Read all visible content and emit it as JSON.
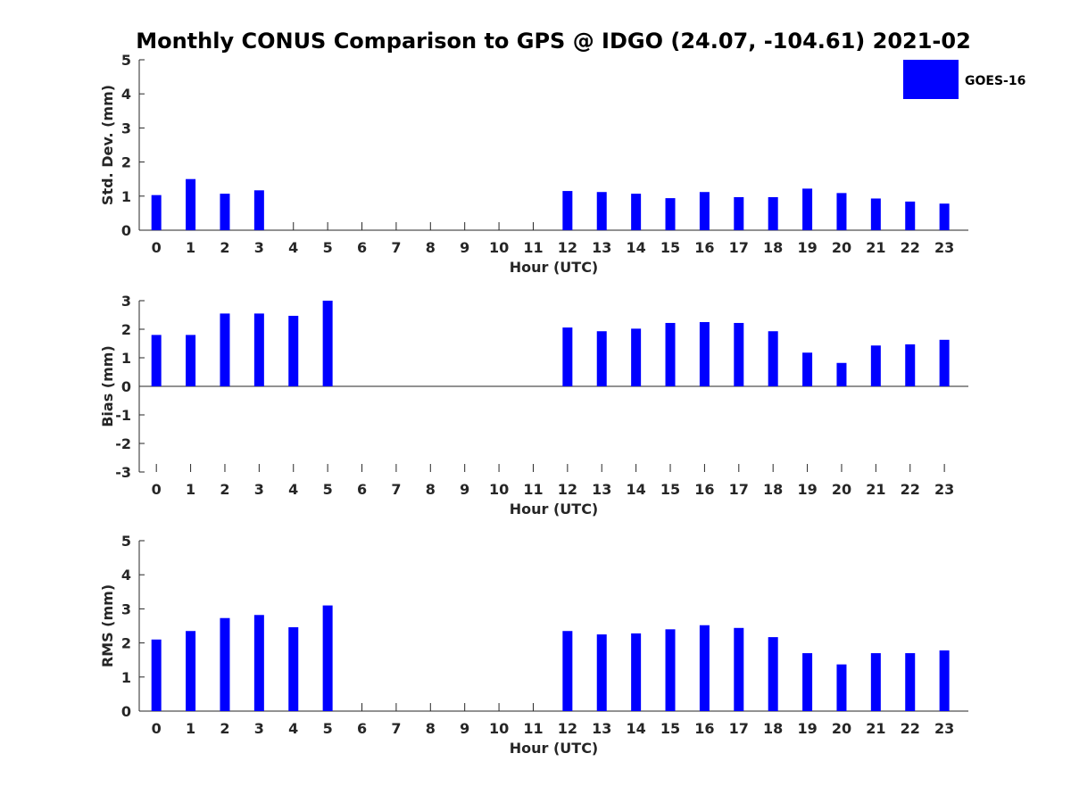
{
  "title": "Monthly CONUS Comparison to GPS @ IDGO (24.07, -104.61) 2021-02",
  "legend": {
    "label": "GOES-16",
    "color": "#0000ff",
    "placement": "top-right"
  },
  "chart_data": [
    {
      "type": "bar",
      "name": "std",
      "xlabel": "Hour (UTC)",
      "ylabel": "Std. Dev. (mm)",
      "ylim": [
        0,
        5
      ],
      "yticks": [
        0,
        1,
        2,
        3,
        4,
        5
      ],
      "categories": [
        "0",
        "1",
        "2",
        "3",
        "4",
        "5",
        "6",
        "7",
        "8",
        "9",
        "10",
        "11",
        "12",
        "13",
        "14",
        "15",
        "16",
        "17",
        "18",
        "19",
        "20",
        "21",
        "22",
        "23"
      ],
      "series": [
        {
          "name": "GOES-16",
          "color": "#0000ff",
          "values": [
            1.03,
            1.5,
            1.07,
            1.17,
            null,
            null,
            null,
            null,
            null,
            null,
            null,
            null,
            1.15,
            1.12,
            1.07,
            0.94,
            1.12,
            0.97,
            0.97,
            1.22,
            1.09,
            0.93,
            0.84,
            0.78
          ]
        }
      ]
    },
    {
      "type": "bar",
      "name": "bias",
      "xlabel": "Hour (UTC)",
      "ylabel": "Bias (mm)",
      "ylim": [
        -3,
        3
      ],
      "yticks": [
        -3,
        -2,
        -1,
        0,
        1,
        2,
        3
      ],
      "categories": [
        "0",
        "1",
        "2",
        "3",
        "4",
        "5",
        "6",
        "7",
        "8",
        "9",
        "10",
        "11",
        "12",
        "13",
        "14",
        "15",
        "16",
        "17",
        "18",
        "19",
        "20",
        "21",
        "22",
        "23"
      ],
      "series": [
        {
          "name": "GOES-16",
          "color": "#0000ff",
          "values": [
            1.8,
            1.8,
            2.55,
            2.55,
            2.47,
            3.0,
            null,
            null,
            null,
            null,
            null,
            null,
            2.06,
            1.93,
            2.02,
            2.22,
            2.25,
            2.22,
            1.93,
            1.18,
            0.82,
            1.43,
            1.47,
            1.63
          ]
        }
      ]
    },
    {
      "type": "bar",
      "name": "rms",
      "xlabel": "Hour (UTC)",
      "ylabel": "RMS (mm)",
      "ylim": [
        0,
        5
      ],
      "yticks": [
        0,
        1,
        2,
        3,
        4,
        5
      ],
      "categories": [
        "0",
        "1",
        "2",
        "3",
        "4",
        "5",
        "6",
        "7",
        "8",
        "9",
        "10",
        "11",
        "12",
        "13",
        "14",
        "15",
        "16",
        "17",
        "18",
        "19",
        "20",
        "21",
        "22",
        "23"
      ],
      "series": [
        {
          "name": "GOES-16",
          "color": "#0000ff",
          "values": [
            2.1,
            2.35,
            2.73,
            2.82,
            2.46,
            3.1,
            null,
            null,
            null,
            null,
            null,
            null,
            2.35,
            2.25,
            2.28,
            2.4,
            2.52,
            2.44,
            2.17,
            1.7,
            1.37,
            1.7,
            1.7,
            1.78
          ]
        }
      ]
    }
  ]
}
